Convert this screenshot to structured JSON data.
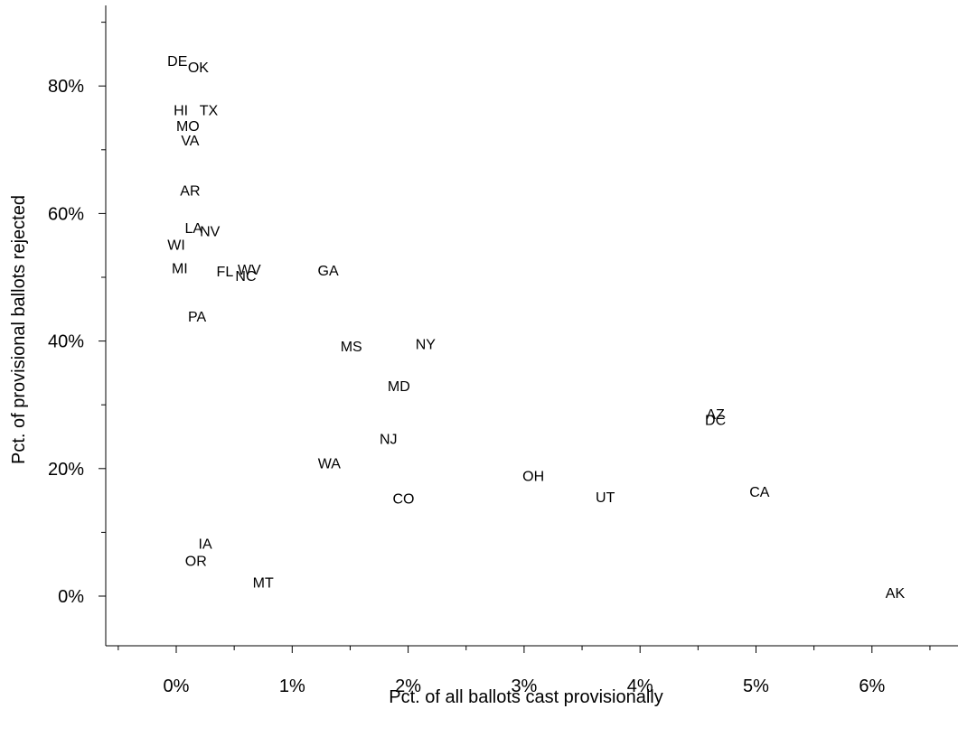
{
  "chart_data": {
    "type": "scatter",
    "title": "",
    "xlabel": "Pct. of all ballots cast provisionally",
    "ylabel": "Pct. of provisional ballots rejected",
    "xlim": [
      -0.6,
      6.7
    ],
    "ylim": [
      -8,
      92
    ],
    "x_ticks": [
      0,
      1,
      2,
      3,
      4,
      5,
      6
    ],
    "x_tick_labels": [
      "0%",
      "1%",
      "2%",
      "3%",
      "4%",
      "5%",
      "6%"
    ],
    "x_minor_ticks": [
      -0.5,
      0.5,
      1.5,
      2.5,
      3.5,
      4.5,
      5.5,
      6.5
    ],
    "y_ticks": [
      0,
      20,
      40,
      60,
      80
    ],
    "y_tick_labels": [
      "0%",
      "20%",
      "40%",
      "60%",
      "80%"
    ],
    "y_minor_ticks": [
      10,
      30,
      50,
      70,
      90
    ],
    "grid": false,
    "marker": "state-label",
    "points": [
      {
        "label": "DE",
        "x": 0.01,
        "y": 84.0
      },
      {
        "label": "OK",
        "x": 0.19,
        "y": 83.0
      },
      {
        "label": "HI",
        "x": 0.04,
        "y": 76.3
      },
      {
        "label": "TX",
        "x": 0.28,
        "y": 76.3
      },
      {
        "label": "MO",
        "x": 0.1,
        "y": 73.8
      },
      {
        "label": "VA",
        "x": 0.12,
        "y": 71.5
      },
      {
        "label": "AR",
        "x": 0.12,
        "y": 63.7
      },
      {
        "label": "LA",
        "x": 0.15,
        "y": 57.8
      },
      {
        "label": "NV",
        "x": 0.29,
        "y": 57.3
      },
      {
        "label": "WI",
        "x": 0.0,
        "y": 55.2
      },
      {
        "label": "MI",
        "x": 0.03,
        "y": 51.5
      },
      {
        "label": "FL",
        "x": 0.42,
        "y": 51.0
      },
      {
        "label": "WV",
        "x": 0.63,
        "y": 51.3
      },
      {
        "label": "NC",
        "x": 0.6,
        "y": 50.3
      },
      {
        "label": "GA",
        "x": 1.31,
        "y": 51.1
      },
      {
        "label": "PA",
        "x": 0.18,
        "y": 43.9
      },
      {
        "label": "MS",
        "x": 1.51,
        "y": 39.2
      },
      {
        "label": "NY",
        "x": 2.15,
        "y": 39.6
      },
      {
        "label": "MD",
        "x": 1.92,
        "y": 33.0
      },
      {
        "label": "AZ",
        "x": 4.65,
        "y": 28.6
      },
      {
        "label": "DC",
        "x": 4.65,
        "y": 27.7
      },
      {
        "label": "NJ",
        "x": 1.83,
        "y": 24.7
      },
      {
        "label": "WA",
        "x": 1.32,
        "y": 20.9
      },
      {
        "label": "OH",
        "x": 3.08,
        "y": 18.9
      },
      {
        "label": "CA",
        "x": 5.03,
        "y": 16.4
      },
      {
        "label": "UT",
        "x": 3.7,
        "y": 15.6
      },
      {
        "label": "CO",
        "x": 1.96,
        "y": 15.4
      },
      {
        "label": "IA",
        "x": 0.25,
        "y": 8.3
      },
      {
        "label": "OR",
        "x": 0.17,
        "y": 5.6
      },
      {
        "label": "MT",
        "x": 0.75,
        "y": 2.2
      },
      {
        "label": "AK",
        "x": 6.2,
        "y": 0.6
      }
    ]
  }
}
